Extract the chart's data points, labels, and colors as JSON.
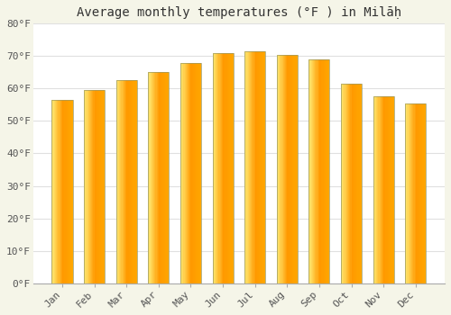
{
  "title": "Average monthly temperatures (°F ) in Milāḥ",
  "months": [
    "Jan",
    "Feb",
    "Mar",
    "Apr",
    "May",
    "Jun",
    "Jul",
    "Aug",
    "Sep",
    "Oct",
    "Nov",
    "Dec"
  ],
  "values": [
    56.5,
    59.5,
    62.5,
    65.0,
    68.0,
    71.0,
    71.5,
    70.5,
    69.0,
    61.5,
    57.5,
    55.5
  ],
  "bar_color_center": "#FFA500",
  "bar_color_edge_left": "#FFD700",
  "bar_outline_color": "#999966",
  "plot_bg_color": "#FFFFFF",
  "fig_bg_color": "#F5F5E8",
  "grid_color": "#E0E0E0",
  "ylim": [
    0,
    80
  ],
  "yticks": [
    0,
    10,
    20,
    30,
    40,
    50,
    60,
    70,
    80
  ],
  "title_fontsize": 10,
  "tick_fontsize": 8,
  "font_family": "monospace"
}
